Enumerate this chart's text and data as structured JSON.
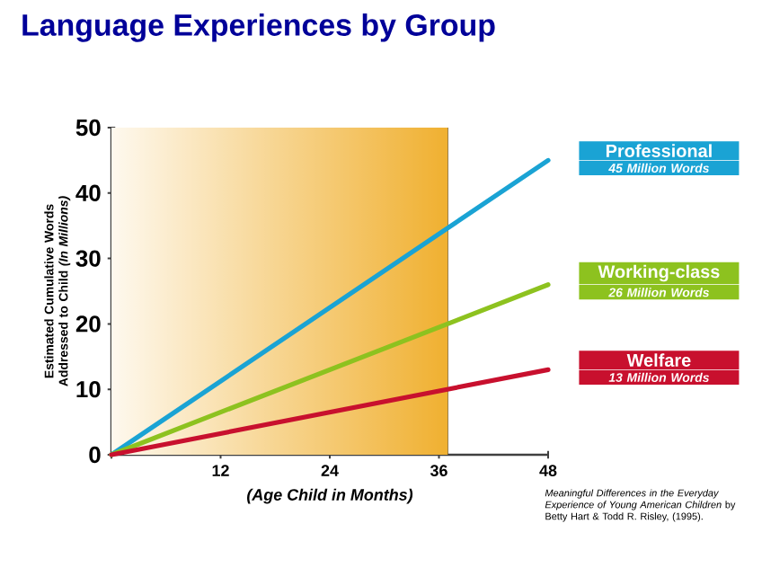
{
  "chart_data": {
    "type": "line",
    "title": "Language Experiences by Group",
    "xlabel": "(Age Child in Months)",
    "ylabel": "Estimated Cumulative Words Addressed to Child *(In Millions)*",
    "x": [
      0,
      48
    ],
    "series": [
      {
        "name": "Professional",
        "color": "#1aa3d4",
        "values": [
          0,
          45
        ]
      },
      {
        "name": "Working-class",
        "color": "#8dc21f",
        "values": [
          0,
          26
        ]
      },
      {
        "name": "Welfare",
        "color": "#c8102e",
        "values": [
          0,
          13
        ]
      }
    ],
    "annotations": [
      "45 Million Words",
      "26 Million Words",
      "13 Million Words",
      "*Meaningful Differences in the Everyday Experience of Young American Children* by Betty Hart & Todd R. Risley, (1995)."
    ],
    "bands": [
      {
        "axis": "x",
        "from": 0,
        "to": 37,
        "color": "#f0b030"
      }
    ],
    "xlim": [
      0,
      48
    ],
    "ylim": [
      0,
      50
    ],
    "xticks": [
      {
        "value": 0,
        "label": null
      },
      12,
      24,
      36,
      48
    ],
    "yticks": [
      0,
      10,
      20,
      30,
      40,
      50
    ],
    "grid": false,
    "marker": "none",
    "line_style": "solid"
  }
}
